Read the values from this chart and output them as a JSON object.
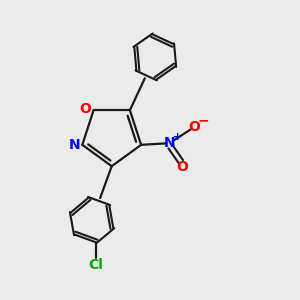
{
  "background_color": "#ebebeb",
  "bond_color": "#1a1a1a",
  "N_color": "#0000ff",
  "O_color": "#ff0000",
  "Cl_color": "#00aa00",
  "fig_size": [
    3.0,
    3.0
  ],
  "dpi": 100,
  "xlim": [
    0,
    10
  ],
  "ylim": [
    0,
    10
  ]
}
